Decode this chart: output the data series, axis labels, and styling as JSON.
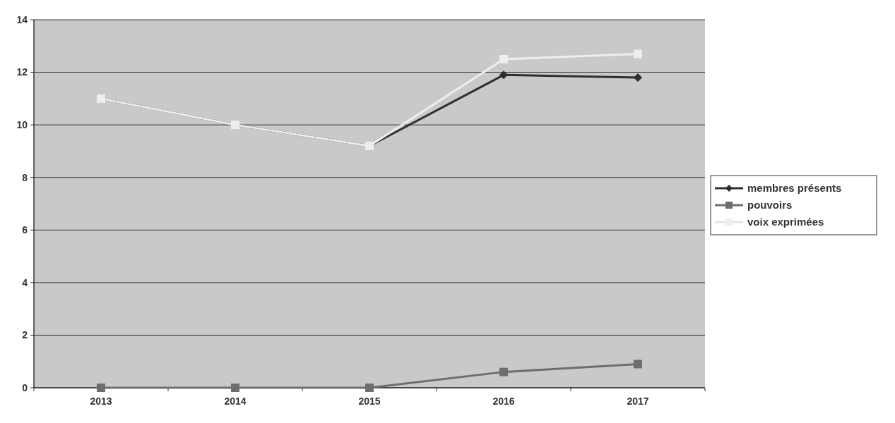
{
  "chart_data": {
    "type": "line",
    "categories": [
      "2013",
      "2014",
      "2015",
      "2016",
      "2017"
    ],
    "series": [
      {
        "name": "membres présents",
        "color": "#2e2e2e",
        "marker": "diamond",
        "values": [
          11,
          10,
          9.2,
          11.9,
          11.8
        ]
      },
      {
        "name": "pouvoirs",
        "color": "#6e6e6e",
        "marker": "square",
        "values": [
          0,
          0,
          0,
          0.6,
          0.9
        ]
      },
      {
        "name": "voix exprimées",
        "color": "#eeeeee",
        "marker": "square",
        "values": [
          11,
          10,
          9.2,
          12.5,
          12.7
        ]
      }
    ],
    "ylim": [
      0,
      14
    ],
    "yticks": [
      0,
      2,
      4,
      6,
      8,
      10,
      12,
      14
    ],
    "grid": "y",
    "legend": "right"
  }
}
